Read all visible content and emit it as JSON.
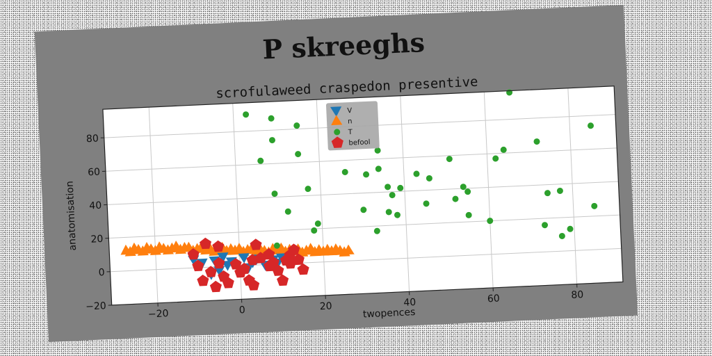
{
  "chart_data": {
    "type": "scatter",
    "title": "P skreeghs",
    "subtitle": "scrofulaweed craspedon presentive",
    "xlabel": "twopences",
    "ylabel": "anatomisation",
    "xlim": [
      -31,
      91
    ],
    "ylim": [
      -20,
      97
    ],
    "x_ticks": [
      -20,
      0,
      20,
      40,
      60,
      80
    ],
    "y_ticks": [
      -20,
      0,
      20,
      40,
      60,
      80
    ],
    "grid": true,
    "legend_placement": "top-center",
    "series": [
      {
        "name": "V",
        "marker": "triangle-down",
        "color": "#1f77b4",
        "points": [
          [
            -11,
            5
          ],
          [
            -9,
            3
          ],
          [
            -7,
            -4
          ],
          [
            -6,
            4
          ],
          [
            -5,
            -2
          ],
          [
            -4,
            6
          ],
          [
            -3,
            1
          ],
          [
            -2,
            3
          ],
          [
            1,
            5
          ],
          [
            2,
            -1
          ],
          [
            3,
            2
          ],
          [
            4,
            4
          ],
          [
            6,
            0
          ],
          [
            8,
            3
          ],
          [
            9,
            1
          ],
          [
            10,
            4
          ],
          [
            11,
            2
          ]
        ]
      },
      {
        "name": "n",
        "marker": "triangle-up",
        "color": "#ff7f0e",
        "points": [
          [
            -27,
            12
          ],
          [
            -26,
            11
          ],
          [
            -25,
            13
          ],
          [
            -24,
            12
          ],
          [
            -23,
            11
          ],
          [
            -22,
            13
          ],
          [
            -21,
            12
          ],
          [
            -20,
            11
          ],
          [
            -19,
            13
          ],
          [
            -18,
            12
          ],
          [
            -17,
            11
          ],
          [
            -16,
            12
          ],
          [
            -15,
            13
          ],
          [
            -14,
            11
          ],
          [
            -13,
            12
          ],
          [
            -12,
            12
          ],
          [
            -11,
            10
          ],
          [
            -10,
            11
          ],
          [
            -9,
            12
          ],
          [
            -8,
            10
          ],
          [
            -7,
            11
          ],
          [
            -6,
            9
          ],
          [
            -5,
            10
          ],
          [
            -4,
            11
          ],
          [
            -3,
            9
          ],
          [
            -2,
            10
          ],
          [
            -1,
            9
          ],
          [
            0,
            10
          ],
          [
            1,
            8
          ],
          [
            2,
            9
          ],
          [
            3,
            10
          ],
          [
            4,
            8
          ],
          [
            5,
            9
          ],
          [
            6,
            8
          ],
          [
            7,
            7
          ],
          [
            8,
            9
          ],
          [
            9,
            8
          ],
          [
            10,
            9
          ],
          [
            11,
            7
          ],
          [
            12,
            8
          ],
          [
            13,
            7
          ],
          [
            14,
            8
          ],
          [
            15,
            6
          ],
          [
            16,
            7
          ],
          [
            17,
            8
          ],
          [
            18,
            6
          ],
          [
            19,
            7
          ],
          [
            20,
            6
          ],
          [
            21,
            7
          ],
          [
            22,
            6
          ],
          [
            23,
            7
          ],
          [
            24,
            6
          ],
          [
            25,
            5
          ],
          [
            26,
            6
          ]
        ]
      },
      {
        "name": "T",
        "marker": "circle",
        "color": "#2ca02c",
        "points": [
          [
            3,
            90
          ],
          [
            9,
            87
          ],
          [
            15,
            82
          ],
          [
            9,
            74
          ],
          [
            6,
            62
          ],
          [
            15,
            65
          ],
          [
            17,
            44
          ],
          [
            9,
            42
          ],
          [
            12,
            31
          ],
          [
            19,
            23
          ],
          [
            18,
            19
          ],
          [
            9,
            11
          ],
          [
            26,
            53
          ],
          [
            30,
            30
          ],
          [
            31,
            51
          ],
          [
            33,
            17
          ],
          [
            34,
            65
          ],
          [
            34,
            54
          ],
          [
            36,
            43
          ],
          [
            36,
            28
          ],
          [
            37,
            38
          ],
          [
            38,
            26
          ],
          [
            39,
            42
          ],
          [
            43,
            50
          ],
          [
            45,
            32
          ],
          [
            46,
            47
          ],
          [
            51,
            58
          ],
          [
            52,
            34
          ],
          [
            54,
            41
          ],
          [
            55,
            38
          ],
          [
            55,
            24
          ],
          [
            60,
            20
          ],
          [
            62,
            57
          ],
          [
            64,
            62
          ],
          [
            66,
            96
          ],
          [
            72,
            66
          ],
          [
            73,
            16
          ],
          [
            74,
            35
          ],
          [
            77,
            36
          ],
          [
            77,
            9
          ],
          [
            79,
            13
          ],
          [
            85,
            26
          ],
          [
            85,
            74
          ]
        ]
      },
      {
        "name": "befool",
        "marker": "pentagon",
        "color": "#d62728",
        "points": [
          [
            -11,
            8
          ],
          [
            -8,
            14
          ],
          [
            -5,
            12
          ],
          [
            -10,
            1
          ],
          [
            -7,
            -3
          ],
          [
            -5,
            2
          ],
          [
            -4,
            -6
          ],
          [
            -9,
            -8
          ],
          [
            -6,
            -12
          ],
          [
            -3,
            -10
          ],
          [
            -1,
            1
          ],
          [
            0,
            -4
          ],
          [
            1,
            -2
          ],
          [
            2,
            -9
          ],
          [
            3,
            -12
          ],
          [
            3,
            3
          ],
          [
            4,
            12
          ],
          [
            5,
            4
          ],
          [
            7,
            6
          ],
          [
            8,
            1
          ],
          [
            9,
            -4
          ],
          [
            10,
            -10
          ],
          [
            11,
            2
          ],
          [
            12,
            5
          ],
          [
            13,
            8
          ],
          [
            14,
            2
          ],
          [
            15,
            -4
          ],
          [
            7,
            -1
          ],
          [
            12,
            0
          ]
        ]
      }
    ]
  }
}
